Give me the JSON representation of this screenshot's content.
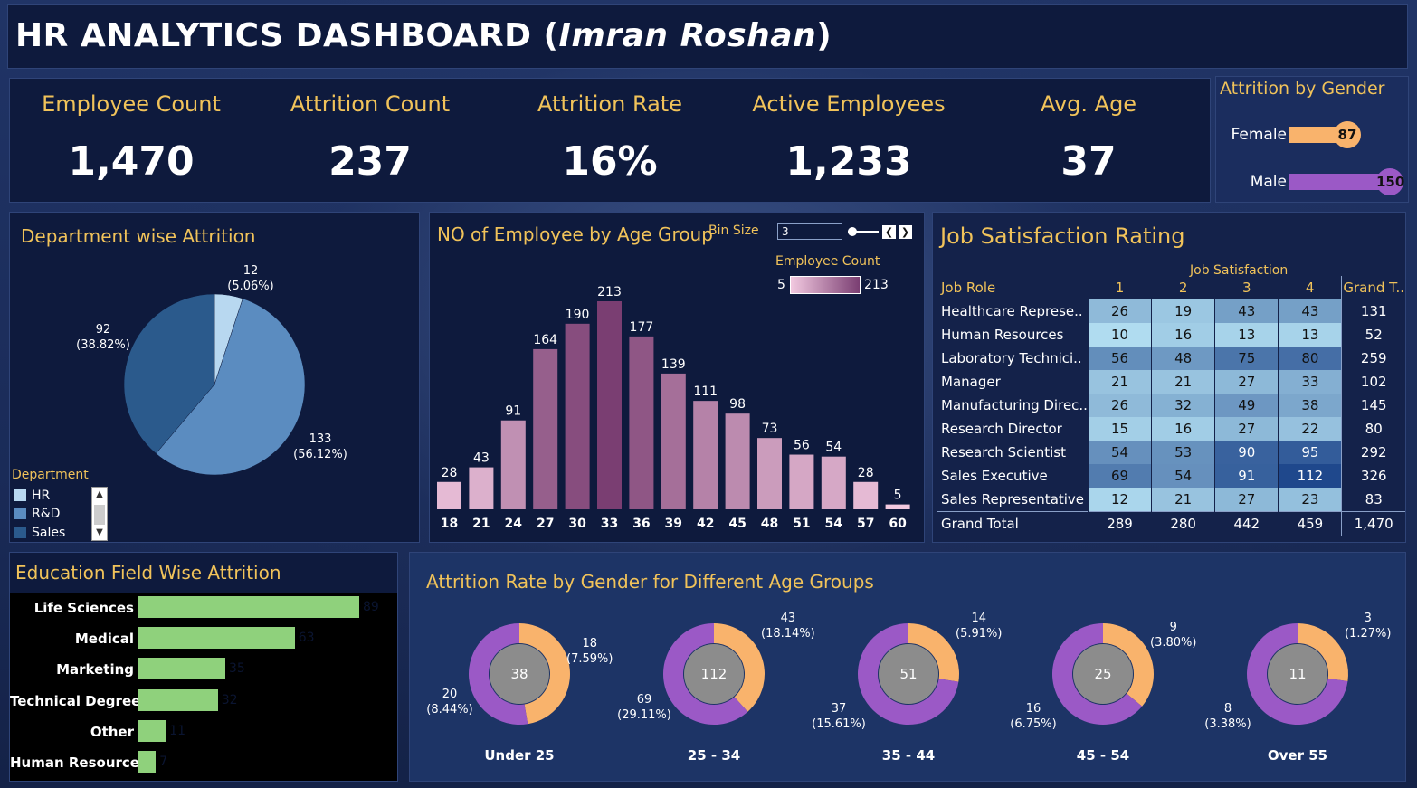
{
  "title": {
    "main": "HR ANALYTICS DASHBOARD (",
    "name": "Imran Roshan",
    "close": ")"
  },
  "kpis": [
    {
      "label": "Employee Count",
      "value": "1,470"
    },
    {
      "label": "Attrition Count",
      "value": "237"
    },
    {
      "label": "Attrition Rate",
      "value": "16%"
    },
    {
      "label": "Active Employees",
      "value": "1,233"
    },
    {
      "label": "Avg. Age",
      "value": "37"
    }
  ],
  "gender_attrition": {
    "title": "Attrition by Gender",
    "items": [
      {
        "label": "Female",
        "value": 87,
        "value_text": "87",
        "color": "#f9b36c"
      },
      {
        "label": "Male",
        "value": 150,
        "value_text": "150",
        "color": "#9b59c6"
      }
    ]
  },
  "department": {
    "title": "Department wise Attrition",
    "legend_title": "Department",
    "slices": [
      {
        "name": "HR",
        "value": 12,
        "count_text": "12",
        "pct_text": "(5.06%)",
        "color": "#b8d8f0"
      },
      {
        "name": "R&D",
        "value": 133,
        "count_text": "133",
        "pct_text": "(56.12%)",
        "color": "#5b8cc0"
      },
      {
        "name": "Sales",
        "value": 92,
        "count_text": "92",
        "pct_text": "(38.82%)",
        "color": "#2b5a8c"
      }
    ]
  },
  "age_group": {
    "title": "NO of Employee by Age Group",
    "bin_size_label": "Bin Size",
    "bin_size_value": "3",
    "color_legend_title": "Employee Count",
    "color_min": "5",
    "color_max": "213",
    "categories": [
      "18",
      "21",
      "24",
      "27",
      "30",
      "33",
      "36",
      "39",
      "42",
      "45",
      "48",
      "51",
      "54",
      "57",
      "60"
    ],
    "values": [
      28,
      43,
      91,
      164,
      190,
      213,
      177,
      139,
      111,
      98,
      73,
      56,
      54,
      28,
      5
    ]
  },
  "job_satisfaction": {
    "title": "Job Satisfaction Rating",
    "column_group": "Job Satisfaction",
    "row_header": "Job Role",
    "columns": [
      "1",
      "2",
      "3",
      "4"
    ],
    "total_header": "Grand T..",
    "rows": [
      {
        "role": "Healthcare Represe..",
        "values": [
          26,
          19,
          43,
          43
        ],
        "total": "131"
      },
      {
        "role": "Human Resources",
        "values": [
          10,
          16,
          13,
          13
        ],
        "total": "52"
      },
      {
        "role": "Laboratory Technici..",
        "values": [
          56,
          48,
          75,
          80
        ],
        "total": "259"
      },
      {
        "role": "Manager",
        "values": [
          21,
          21,
          27,
          33
        ],
        "total": "102"
      },
      {
        "role": "Manufacturing Direc..",
        "values": [
          26,
          32,
          49,
          38
        ],
        "total": "145"
      },
      {
        "role": "Research Director",
        "values": [
          15,
          16,
          27,
          22
        ],
        "total": "80"
      },
      {
        "role": "Research Scientist",
        "values": [
          54,
          53,
          90,
          95
        ],
        "total": "292"
      },
      {
        "role": "Sales Executive",
        "values": [
          69,
          54,
          91,
          112
        ],
        "total": "326"
      },
      {
        "role": "Sales Representative",
        "values": [
          12,
          21,
          27,
          23
        ],
        "total": "83"
      }
    ],
    "grand_total": {
      "label": "Grand Total",
      "values": [
        "289",
        "280",
        "442",
        "459"
      ],
      "total": "1,470"
    }
  },
  "education": {
    "title": "Education Field Wise Attrition",
    "items": [
      {
        "label": "Life Sciences",
        "value": 89
      },
      {
        "label": "Medical",
        "value": 63
      },
      {
        "label": "Marketing",
        "value": 35
      },
      {
        "label": "Technical Degree",
        "value": 32
      },
      {
        "label": "Other",
        "value": 11
      },
      {
        "label": "Human Resources",
        "value": 7
      }
    ]
  },
  "age_gender": {
    "title": "Attrition Rate by Gender for Different Age Groups",
    "female_color": "#f9b36c",
    "male_color": "#9b59c6",
    "groups": [
      {
        "label": "Under 25",
        "total": "38",
        "female": 18,
        "male": 20,
        "female_text": "18",
        "female_pct": "(7.59%)",
        "male_text": "20",
        "male_pct": "(8.44%)"
      },
      {
        "label": "25 - 34",
        "total": "112",
        "female": 43,
        "male": 69,
        "female_text": "43",
        "female_pct": "(18.14%)",
        "male_text": "69",
        "male_pct": "(29.11%)"
      },
      {
        "label": "35 - 44",
        "total": "51",
        "female": 14,
        "male": 37,
        "female_text": "14",
        "female_pct": "(5.91%)",
        "male_text": "37",
        "male_pct": "(15.61%)"
      },
      {
        "label": "45 - 54",
        "total": "25",
        "female": 9,
        "male": 16,
        "female_text": "9",
        "female_pct": "(3.80%)",
        "male_text": "16",
        "male_pct": "(6.75%)"
      },
      {
        "label": "Over 55",
        "total": "11",
        "female": 3,
        "male": 8,
        "female_text": "3",
        "female_pct": "(1.27%)",
        "male_text": "8",
        "male_pct": "(3.38%)"
      }
    ]
  }
}
